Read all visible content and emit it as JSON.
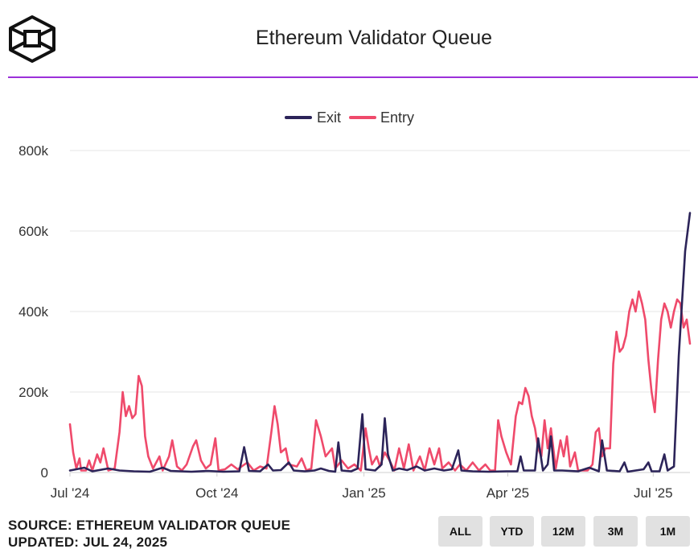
{
  "header": {
    "title": "Ethereum Validator Queue",
    "logo_icon": "cube-logo-icon"
  },
  "footer": {
    "source": "SOURCE: ETHEREUM VALIDATOR QUEUE",
    "updated": "UPDATED: JUL 24, 2025",
    "range_buttons": [
      "ALL",
      "YTD",
      "12M",
      "3M",
      "1M"
    ]
  },
  "colors": {
    "exit": "#2c2459",
    "entry": "#ef4a6b",
    "accent_rule": "#9b30d9",
    "grid": "#e4e4e4"
  },
  "chart_data": {
    "type": "line",
    "title": "Ethereum Validator Queue",
    "xlabel": "",
    "ylabel": "",
    "x_range": [
      "2024-07-01",
      "2025-07-24"
    ],
    "x_ticks": [
      {
        "date": "2024-07-01",
        "label": "Jul '24"
      },
      {
        "date": "2024-10-01",
        "label": "Oct '24"
      },
      {
        "date": "2025-01-01",
        "label": "Jan '25"
      },
      {
        "date": "2025-04-01",
        "label": "Apr '25"
      },
      {
        "date": "2025-07-01",
        "label": "Jul '25"
      }
    ],
    "y_ticks": [
      {
        "value": 0,
        "label": "0"
      },
      {
        "value": 200000,
        "label": "200k"
      },
      {
        "value": 400000,
        "label": "400k"
      },
      {
        "value": 600000,
        "label": "600k"
      },
      {
        "value": 800000,
        "label": "800k"
      }
    ],
    "ylim": [
      0,
      800000
    ],
    "grid": true,
    "legend_position": "top-center",
    "series": [
      {
        "name": "Exit",
        "color": "#2c2459",
        "points": [
          [
            "2024-07-01",
            5000
          ],
          [
            "2024-07-05",
            8000
          ],
          [
            "2024-07-10",
            12000
          ],
          [
            "2024-07-15",
            3000
          ],
          [
            "2024-07-25",
            10000
          ],
          [
            "2024-08-01",
            5000
          ],
          [
            "2024-08-10",
            3000
          ],
          [
            "2024-08-20",
            2000
          ],
          [
            "2024-08-28",
            12000
          ],
          [
            "2024-09-02",
            4000
          ],
          [
            "2024-09-15",
            2000
          ],
          [
            "2024-09-25",
            4000
          ],
          [
            "2024-10-05",
            2000
          ],
          [
            "2024-10-15",
            3000
          ],
          [
            "2024-10-18",
            63000
          ],
          [
            "2024-10-21",
            4000
          ],
          [
            "2024-10-28",
            3000
          ],
          [
            "2024-11-02",
            20000
          ],
          [
            "2024-11-05",
            5000
          ],
          [
            "2024-11-10",
            6000
          ],
          [
            "2024-11-15",
            25000
          ],
          [
            "2024-11-18",
            5000
          ],
          [
            "2024-11-25",
            3000
          ],
          [
            "2024-12-01",
            5000
          ],
          [
            "2024-12-05",
            10000
          ],
          [
            "2024-12-10",
            4000
          ],
          [
            "2024-12-14",
            2000
          ],
          [
            "2024-12-16",
            75000
          ],
          [
            "2024-12-18",
            5000
          ],
          [
            "2024-12-24",
            3000
          ],
          [
            "2024-12-28",
            10000
          ],
          [
            "2024-12-31",
            145000
          ],
          [
            "2025-01-02",
            8000
          ],
          [
            "2025-01-08",
            5000
          ],
          [
            "2025-01-12",
            20000
          ],
          [
            "2025-01-14",
            135000
          ],
          [
            "2025-01-16",
            45000
          ],
          [
            "2025-01-19",
            5000
          ],
          [
            "2025-01-23",
            10000
          ],
          [
            "2025-01-28",
            6000
          ],
          [
            "2025-02-03",
            15000
          ],
          [
            "2025-02-08",
            5000
          ],
          [
            "2025-02-14",
            10000
          ],
          [
            "2025-02-20",
            5000
          ],
          [
            "2025-02-25",
            8000
          ],
          [
            "2025-03-01",
            55000
          ],
          [
            "2025-03-03",
            5000
          ],
          [
            "2025-03-10",
            3000
          ],
          [
            "2025-03-20",
            2000
          ],
          [
            "2025-03-31",
            3000
          ],
          [
            "2025-04-07",
            3000
          ],
          [
            "2025-04-09",
            40000
          ],
          [
            "2025-04-11",
            5000
          ],
          [
            "2025-04-18",
            5000
          ],
          [
            "2025-04-20",
            85000
          ],
          [
            "2025-04-23",
            5000
          ],
          [
            "2025-04-26",
            20000
          ],
          [
            "2025-04-28",
            90000
          ],
          [
            "2025-04-30",
            5000
          ],
          [
            "2025-05-05",
            5000
          ],
          [
            "2025-05-15",
            3000
          ],
          [
            "2025-05-22",
            12000
          ],
          [
            "2025-05-28",
            3000
          ],
          [
            "2025-05-30",
            80000
          ],
          [
            "2025-06-02",
            5000
          ],
          [
            "2025-06-10",
            3000
          ],
          [
            "2025-06-13",
            25000
          ],
          [
            "2025-06-15",
            2000
          ],
          [
            "2025-06-25",
            8000
          ],
          [
            "2025-06-28",
            25000
          ],
          [
            "2025-06-30",
            3000
          ],
          [
            "2025-07-05",
            3000
          ],
          [
            "2025-07-08",
            45000
          ],
          [
            "2025-07-10",
            5000
          ],
          [
            "2025-07-14",
            15000
          ],
          [
            "2025-07-17",
            290000
          ],
          [
            "2025-07-21",
            550000
          ],
          [
            "2025-07-24",
            645000
          ]
        ]
      },
      {
        "name": "Entry",
        "color": "#ef4a6b",
        "points": [
          [
            "2024-07-01",
            120000
          ],
          [
            "2024-07-03",
            50000
          ],
          [
            "2024-07-05",
            10000
          ],
          [
            "2024-07-07",
            35000
          ],
          [
            "2024-07-08",
            5000
          ],
          [
            "2024-07-11",
            5000
          ],
          [
            "2024-07-13",
            30000
          ],
          [
            "2024-07-15",
            5000
          ],
          [
            "2024-07-18",
            45000
          ],
          [
            "2024-07-20",
            25000
          ],
          [
            "2024-07-22",
            60000
          ],
          [
            "2024-07-25",
            5000
          ],
          [
            "2024-07-29",
            10000
          ],
          [
            "2024-08-01",
            100000
          ],
          [
            "2024-08-03",
            200000
          ],
          [
            "2024-08-05",
            140000
          ],
          [
            "2024-08-07",
            165000
          ],
          [
            "2024-08-09",
            135000
          ],
          [
            "2024-08-11",
            145000
          ],
          [
            "2024-08-13",
            240000
          ],
          [
            "2024-08-15",
            215000
          ],
          [
            "2024-08-17",
            90000
          ],
          [
            "2024-08-19",
            40000
          ],
          [
            "2024-08-22",
            10000
          ],
          [
            "2024-08-26",
            40000
          ],
          [
            "2024-08-28",
            5000
          ],
          [
            "2024-09-01",
            40000
          ],
          [
            "2024-09-03",
            80000
          ],
          [
            "2024-09-06",
            15000
          ],
          [
            "2024-09-09",
            5000
          ],
          [
            "2024-09-12",
            20000
          ],
          [
            "2024-09-16",
            65000
          ],
          [
            "2024-09-18",
            80000
          ],
          [
            "2024-09-21",
            30000
          ],
          [
            "2024-09-24",
            10000
          ],
          [
            "2024-09-27",
            20000
          ],
          [
            "2024-09-30",
            85000
          ],
          [
            "2024-10-02",
            5000
          ],
          [
            "2024-10-06",
            8000
          ],
          [
            "2024-10-10",
            20000
          ],
          [
            "2024-10-14",
            8000
          ],
          [
            "2024-10-20",
            25000
          ],
          [
            "2024-10-24",
            5000
          ],
          [
            "2024-10-28",
            15000
          ],
          [
            "2024-11-01",
            10000
          ],
          [
            "2024-11-04",
            100000
          ],
          [
            "2024-11-06",
            165000
          ],
          [
            "2024-11-08",
            120000
          ],
          [
            "2024-11-10",
            50000
          ],
          [
            "2024-11-13",
            60000
          ],
          [
            "2024-11-15",
            20000
          ],
          [
            "2024-11-20",
            15000
          ],
          [
            "2024-11-23",
            35000
          ],
          [
            "2024-11-26",
            5000
          ],
          [
            "2024-11-29",
            10000
          ],
          [
            "2024-12-02",
            130000
          ],
          [
            "2024-12-05",
            90000
          ],
          [
            "2024-12-08",
            40000
          ],
          [
            "2024-12-12",
            60000
          ],
          [
            "2024-12-14",
            10000
          ],
          [
            "2024-12-18",
            30000
          ],
          [
            "2024-12-22",
            10000
          ],
          [
            "2024-12-26",
            20000
          ],
          [
            "2024-12-30",
            5000
          ],
          [
            "2025-01-02",
            110000
          ],
          [
            "2025-01-04",
            60000
          ],
          [
            "2025-01-06",
            20000
          ],
          [
            "2025-01-09",
            40000
          ],
          [
            "2025-01-11",
            15000
          ],
          [
            "2025-01-14",
            50000
          ],
          [
            "2025-01-17",
            30000
          ],
          [
            "2025-01-20",
            5000
          ],
          [
            "2025-01-23",
            60000
          ],
          [
            "2025-01-26",
            10000
          ],
          [
            "2025-01-29",
            70000
          ],
          [
            "2025-02-01",
            5000
          ],
          [
            "2025-02-05",
            40000
          ],
          [
            "2025-02-08",
            5000
          ],
          [
            "2025-02-11",
            60000
          ],
          [
            "2025-02-14",
            20000
          ],
          [
            "2025-02-17",
            60000
          ],
          [
            "2025-02-19",
            10000
          ],
          [
            "2025-02-23",
            25000
          ],
          [
            "2025-02-27",
            5000
          ],
          [
            "2025-03-02",
            20000
          ],
          [
            "2025-03-06",
            5000
          ],
          [
            "2025-03-10",
            25000
          ],
          [
            "2025-03-14",
            5000
          ],
          [
            "2025-03-18",
            20000
          ],
          [
            "2025-03-21",
            5000
          ],
          [
            "2025-03-24",
            5000
          ],
          [
            "2025-03-26",
            130000
          ],
          [
            "2025-03-28",
            90000
          ],
          [
            "2025-03-31",
            50000
          ],
          [
            "2025-04-03",
            20000
          ],
          [
            "2025-04-06",
            140000
          ],
          [
            "2025-04-08",
            175000
          ],
          [
            "2025-04-10",
            170000
          ],
          [
            "2025-04-12",
            210000
          ],
          [
            "2025-04-14",
            190000
          ],
          [
            "2025-04-16",
            140000
          ],
          [
            "2025-04-18",
            110000
          ],
          [
            "2025-04-20",
            60000
          ],
          [
            "2025-04-22",
            40000
          ],
          [
            "2025-04-24",
            130000
          ],
          [
            "2025-04-26",
            60000
          ],
          [
            "2025-04-28",
            110000
          ],
          [
            "2025-05-01",
            10000
          ],
          [
            "2025-05-04",
            80000
          ],
          [
            "2025-05-06",
            40000
          ],
          [
            "2025-05-08",
            90000
          ],
          [
            "2025-05-10",
            15000
          ],
          [
            "2025-05-13",
            50000
          ],
          [
            "2025-05-15",
            5000
          ],
          [
            "2025-05-18",
            5000
          ],
          [
            "2025-05-21",
            5000
          ],
          [
            "2025-05-24",
            20000
          ],
          [
            "2025-05-26",
            100000
          ],
          [
            "2025-05-28",
            110000
          ],
          [
            "2025-05-30",
            40000
          ],
          [
            "2025-06-01",
            60000
          ],
          [
            "2025-06-04",
            60000
          ],
          [
            "2025-06-06",
            270000
          ],
          [
            "2025-06-08",
            350000
          ],
          [
            "2025-06-10",
            300000
          ],
          [
            "2025-06-12",
            310000
          ],
          [
            "2025-06-14",
            340000
          ],
          [
            "2025-06-16",
            400000
          ],
          [
            "2025-06-18",
            430000
          ],
          [
            "2025-06-20",
            400000
          ],
          [
            "2025-06-22",
            450000
          ],
          [
            "2025-06-24",
            420000
          ],
          [
            "2025-06-26",
            380000
          ],
          [
            "2025-06-28",
            280000
          ],
          [
            "2025-06-30",
            200000
          ],
          [
            "2025-07-02",
            150000
          ],
          [
            "2025-07-04",
            280000
          ],
          [
            "2025-07-06",
            380000
          ],
          [
            "2025-07-08",
            420000
          ],
          [
            "2025-07-10",
            400000
          ],
          [
            "2025-07-12",
            360000
          ],
          [
            "2025-07-14",
            400000
          ],
          [
            "2025-07-16",
            430000
          ],
          [
            "2025-07-18",
            420000
          ],
          [
            "2025-07-20",
            360000
          ],
          [
            "2025-07-22",
            380000
          ],
          [
            "2025-07-24",
            320000
          ]
        ]
      }
    ]
  }
}
